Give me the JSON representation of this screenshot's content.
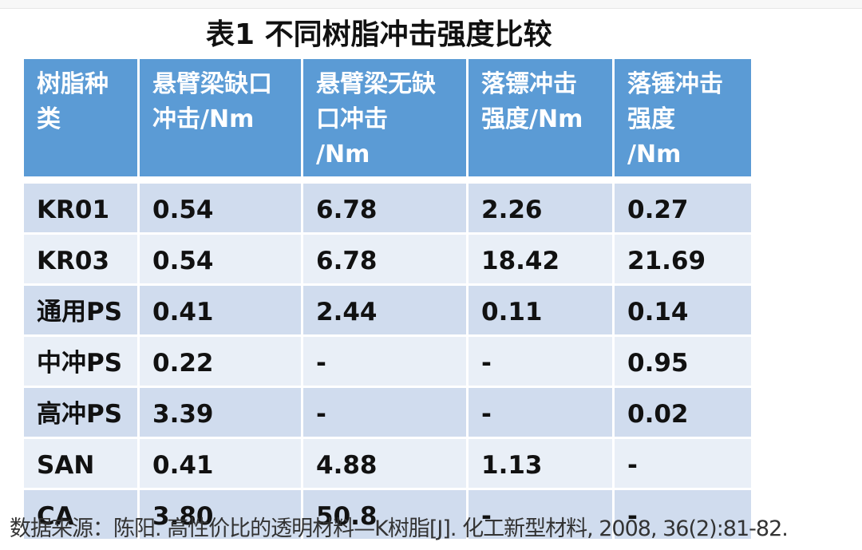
{
  "title": "表1 不同树脂冲击强度比较",
  "table": {
    "headers": [
      [
        "树脂种",
        "类"
      ],
      [
        "悬臂梁缺口",
        "冲击/Nm"
      ],
      [
        "悬臂梁无缺",
        "口冲击",
        "/Nm"
      ],
      [
        "落镖冲击",
        "强度/Nm"
      ],
      [
        "落锤冲击",
        "强度",
        "/Nm"
      ]
    ],
    "rows": [
      [
        "KR01",
        "0.54",
        "6.78",
        "2.26",
        "0.27"
      ],
      [
        "KR03",
        "0.54",
        "6.78",
        "18.42",
        "21.69"
      ],
      [
        "通用PS",
        "0.41",
        "2.44",
        "0.11",
        "0.14"
      ],
      [
        "中冲PS",
        "0.22",
        "-",
        "-",
        "0.95"
      ],
      [
        "高冲PS",
        "3.39",
        "-",
        "-",
        "0.02"
      ],
      [
        "SAN",
        "0.41",
        "4.88",
        "1.13",
        "-"
      ],
      [
        "CA",
        "3.80",
        "50.8",
        "-",
        "-"
      ]
    ]
  },
  "colors": {
    "header_bg": "#5b9bd5",
    "row_odd": "#d0dcee",
    "row_even": "#e9eff7"
  },
  "source": "数据来源：陈阳. 高性价比的透明材料—K树脂[J]. 化工新型材料, 2008, 36(2):81-82."
}
